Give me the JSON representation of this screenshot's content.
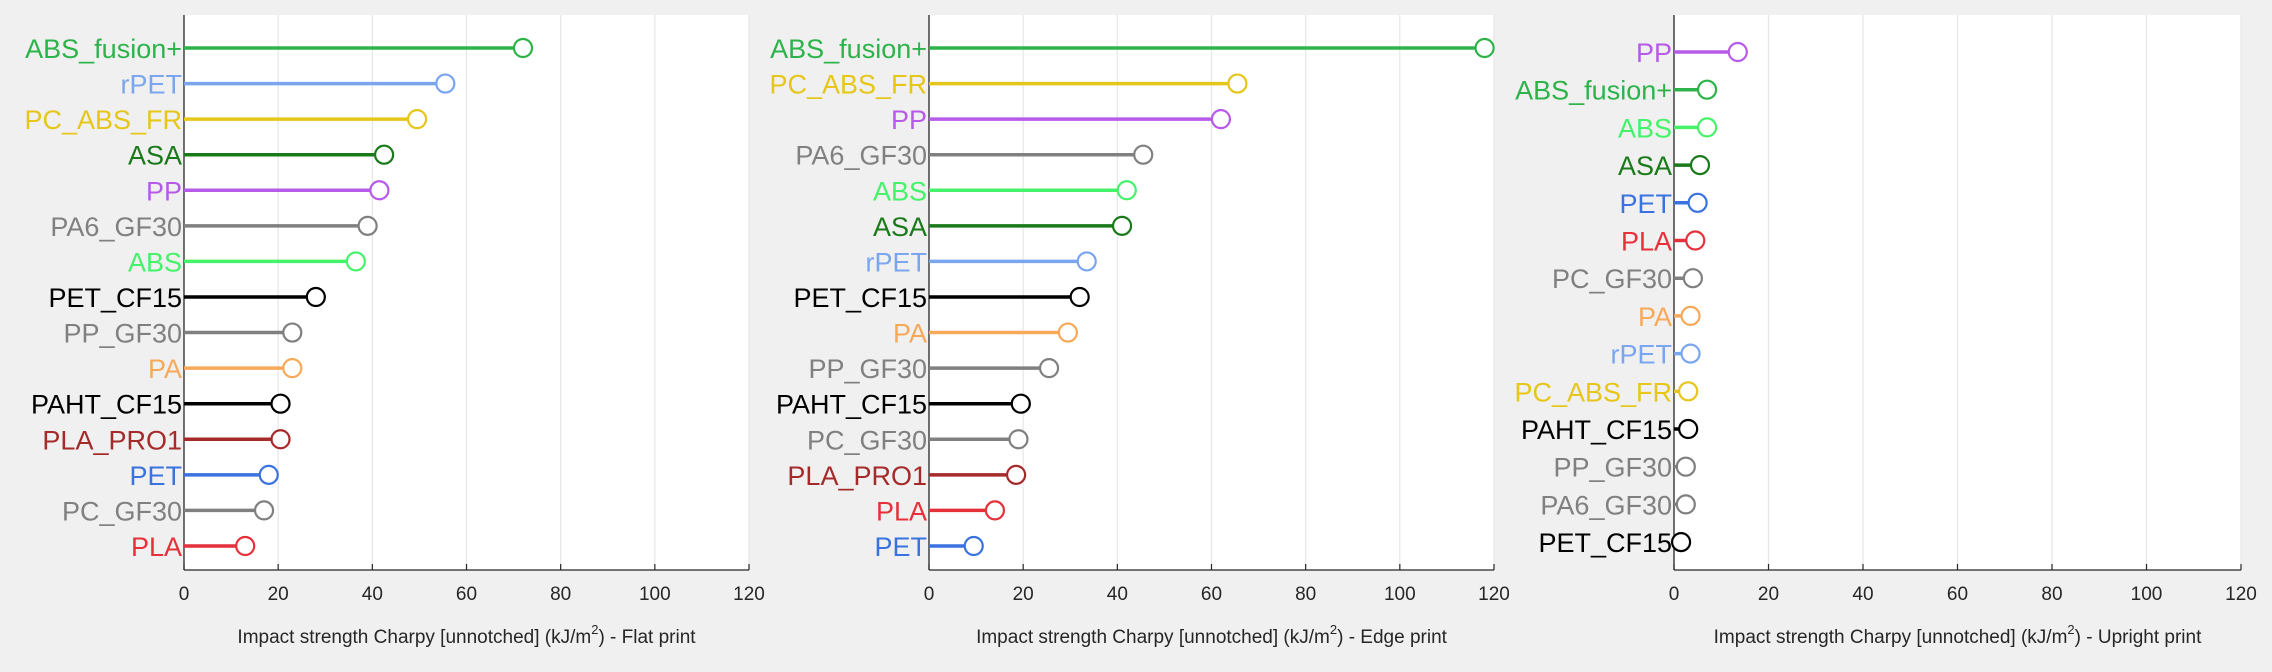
{
  "chart_data": [
    {
      "type": "lollipop",
      "orientation": "horizontal",
      "xlabel_main": "Impact strength Charpy [unnotched] (kJ/m",
      "xlabel_sup": "2",
      "xlabel_tail": ") - Flat print",
      "xlim": [
        0,
        120
      ],
      "xticks": [
        "0",
        "20",
        "40",
        "60",
        "80",
        "100",
        "120"
      ],
      "grid": "vertical",
      "categories": [
        "ABS_fusion+",
        "rPET",
        "PC_ABS_FR",
        "ASA",
        "PP",
        "PA6_GF30",
        "ABS",
        "PET_CF15",
        "PP_GF30",
        "PA",
        "PAHT_CF15",
        "PLA_PRO1",
        "PET",
        "PC_GF30",
        "PLA"
      ],
      "values": [
        72,
        55.5,
        49.5,
        42.5,
        41.5,
        39,
        36.5,
        28,
        23,
        23,
        20.5,
        20.5,
        18,
        17,
        13
      ],
      "colors": [
        "#2db34a",
        "#7aa6f0",
        "#e6c619",
        "#1a7a1a",
        "#b75ae8",
        "#808080",
        "#45f26a",
        "#000000",
        "#808080",
        "#f7a95a",
        "#000000",
        "#a52a2a",
        "#3a73e0",
        "#808080",
        "#e6303a"
      ]
    },
    {
      "type": "lollipop",
      "orientation": "horizontal",
      "xlabel_main": "Impact strength Charpy [unnotched] (kJ/m",
      "xlabel_sup": "2",
      "xlabel_tail": ") - Edge print",
      "xlim": [
        0,
        120
      ],
      "xticks": [
        "0",
        "20",
        "40",
        "60",
        "80",
        "100",
        "120"
      ],
      "grid": "vertical",
      "categories": [
        "ABS_fusion+",
        "PC_ABS_FR",
        "PP",
        "PA6_GF30",
        "ABS",
        "ASA",
        "rPET",
        "PET_CF15",
        "PA",
        "PP_GF30",
        "PAHT_CF15",
        "PC_GF30",
        "PLA_PRO1",
        "PLA",
        "PET"
      ],
      "values": [
        118,
        65.5,
        62,
        45.5,
        42,
        41,
        33.5,
        32,
        29.5,
        25.5,
        19.5,
        19,
        18.5,
        14,
        9.5
      ],
      "colors": [
        "#2db34a",
        "#e6c619",
        "#b75ae8",
        "#808080",
        "#45f26a",
        "#1a7a1a",
        "#7aa6f0",
        "#000000",
        "#f7a95a",
        "#808080",
        "#000000",
        "#808080",
        "#a52a2a",
        "#e6303a",
        "#3a73e0"
      ]
    },
    {
      "type": "lollipop",
      "orientation": "horizontal",
      "xlabel_main": "Impact strength Charpy [unnotched] (kJ/m",
      "xlabel_sup": "2",
      "xlabel_tail": ") - Upright print",
      "xlim": [
        0,
        120
      ],
      "xticks": [
        "0",
        "20",
        "40",
        "60",
        "80",
        "100",
        "120"
      ],
      "grid": "vertical",
      "categories": [
        "PP",
        "ABS_fusion+",
        "ABS",
        "ASA",
        "PET",
        "PLA",
        "PC_GF30",
        "PA",
        "rPET",
        "PC_ABS_FR",
        "PAHT_CF15",
        "PP_GF30",
        "PA6_GF30",
        "PET_CF15"
      ],
      "values": [
        13.5,
        7,
        7,
        5.5,
        5,
        4.5,
        4,
        3.5,
        3.5,
        3,
        3,
        2.5,
        2.5,
        1.5
      ],
      "colors": [
        "#b75ae8",
        "#2db34a",
        "#45f26a",
        "#1a7a1a",
        "#3a73e0",
        "#e6303a",
        "#808080",
        "#f7a95a",
        "#7aa6f0",
        "#e6c619",
        "#000000",
        "#808080",
        "#808080",
        "#000000"
      ]
    }
  ]
}
